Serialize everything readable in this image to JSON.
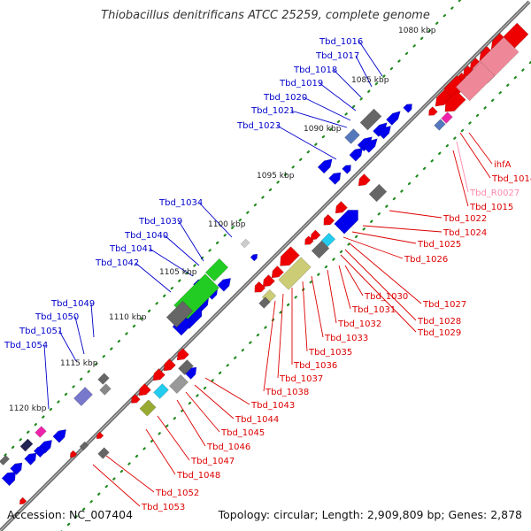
{
  "title": "Thiobacillus denitrificans ATCC 25259, complete genome",
  "footer": {
    "accession": "Accession: NC_007404",
    "topology": "Topology: circular; Length: 2,909,809 bp; Genes: 2,878"
  },
  "colors": {
    "backbone": "#7a7a7a",
    "forward_label": "#0000cc",
    "reverse_label": "#dd0000",
    "rna_label": "#ff88aa",
    "tick": "#228b22",
    "forward_cds": "#0000ee",
    "reverse_cds": "#ee0000",
    "grey_gene": "#666666",
    "green_gene": "#22cc22",
    "olive_gene": "#99aa33",
    "cyan_gene": "#22ccee",
    "magenta_gene": "#ee22aa",
    "khaki_gene": "#cccc77",
    "steel_gene": "#5577bb",
    "pink_gene": "#ee8899"
  },
  "ticks": [
    "1080 kbp",
    "1085 kbp",
    "1090 kbp",
    "1095 kbp",
    "1100 kbp",
    "1105 kbp",
    "1110 kbp",
    "1115 kbp",
    "1120 kbp"
  ],
  "forward_labels": [
    "Tbd_1016",
    "Tbd_1017",
    "Tbd_1018",
    "Tbd_1019",
    "Tbd_1020",
    "Tbd_1021",
    "Tbd_1023",
    "Tbd_1034",
    "Tbd_1039",
    "Tbd_1040",
    "Tbd_1041",
    "Tbd_1042",
    "Tbd_1049",
    "Tbd_1050",
    "Tbd_1051",
    "Tbd_1054"
  ],
  "reverse_labels": [
    "ihfA",
    "Tbd_1014",
    "Tbd_R0027",
    "Tbd_1015",
    "Tbd_1022",
    "Tbd_1024",
    "Tbd_1025",
    "Tbd_1026",
    "Tbd_1027",
    "Tbd_1028",
    "Tbd_1029",
    "Tbd_1030",
    "Tbd_1031",
    "Tbd_1032",
    "Tbd_1033",
    "Tbd_1035",
    "Tbd_1036",
    "Tbd_1037",
    "Tbd_1038",
    "Tbd_1043",
    "Tbd_1044",
    "Tbd_1045",
    "Tbd_1046",
    "Tbd_1047",
    "Tbd_1048",
    "Tbd_1052",
    "Tbd_1053"
  ]
}
